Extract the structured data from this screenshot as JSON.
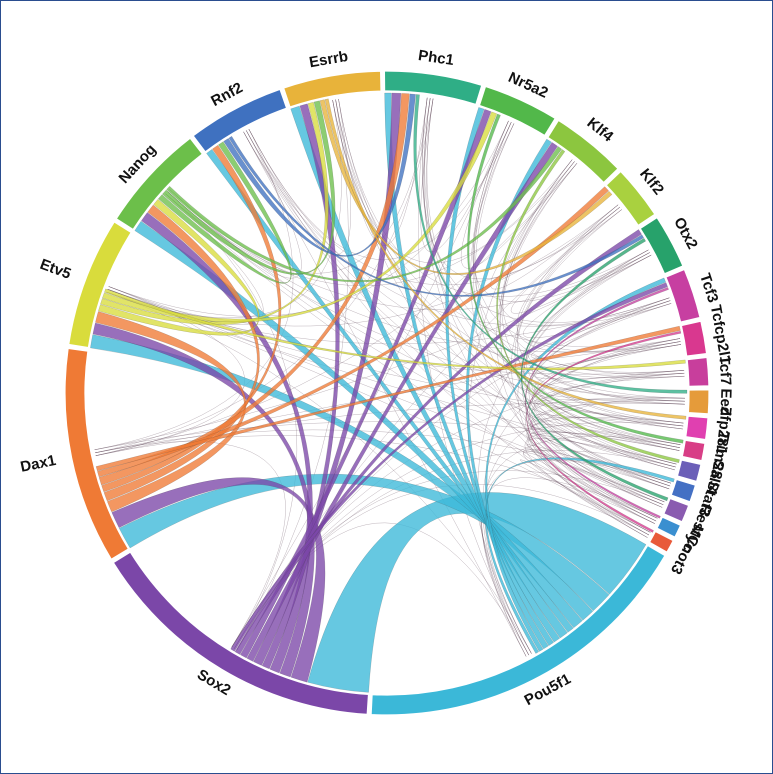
{
  "diagram": {
    "type": "chord",
    "segments": [
      {
        "id": "Pou5f1",
        "label": "Pou5f1",
        "color": "#3bb8d8",
        "weight": 16
      },
      {
        "id": "Sox2",
        "label": "Sox2",
        "color": "#7b47a8",
        "weight": 14
      },
      {
        "id": "Dax1",
        "label": "Dax1",
        "color": "#ef7a35",
        "weight": 10
      },
      {
        "id": "Etv5",
        "label": "Etv5",
        "color": "#d9dc3c",
        "weight": 6
      },
      {
        "id": "Nanog",
        "label": "Nanog",
        "color": "#6cbf4a",
        "weight": 5
      },
      {
        "id": "Rnf2",
        "label": "Rnf2",
        "color": "#3f71c0",
        "weight": 4.5
      },
      {
        "id": "Esrrb",
        "label": "Esrrb",
        "color": "#e8b33a",
        "weight": 4.5
      },
      {
        "id": "Phc1",
        "label": "Phc1",
        "color": "#2fae86",
        "weight": 4.5
      },
      {
        "id": "Nr5a2",
        "label": "Nr5a2",
        "color": "#52b84a",
        "weight": 3.5
      },
      {
        "id": "Klf4",
        "label": "Klf4",
        "color": "#8cc63f",
        "weight": 3.5
      },
      {
        "id": "Klf2",
        "label": "Klf2",
        "color": "#a9d13f",
        "weight": 2.5
      },
      {
        "id": "Otx2",
        "label": "Otx2",
        "color": "#27a26b",
        "weight": 2.5
      },
      {
        "id": "Tcf3",
        "label": "Tcf3",
        "color": "#c73fa1",
        "weight": 2.3
      },
      {
        "id": "Tcfcp2l1",
        "label": "Tcfcp2l1",
        "color": "#d9388f",
        "weight": 1.5
      },
      {
        "id": "Tcf7",
        "label": "Tcf7",
        "color": "#c83e9c",
        "weight": 1.3
      },
      {
        "id": "Eed",
        "label": "Eed",
        "color": "#e59b3a",
        "weight": 1.1
      },
      {
        "id": "Zfp281",
        "label": "Zfp281",
        "color": "#e040b0",
        "weight": 1.0
      },
      {
        "id": "Trim28",
        "label": "Trim28",
        "color": "#d83e86",
        "weight": 0.8
      },
      {
        "id": "Sall4",
        "label": "Sall4",
        "color": "#6b5fb8",
        "weight": 0.8
      },
      {
        "id": "Stat3",
        "label": "Stat3",
        "color": "#4470c4",
        "weight": 0.8
      },
      {
        "id": "Rest",
        "label": "Rest",
        "color": "#8a5bb0",
        "weight": 0.8
      },
      {
        "id": "Myc",
        "label": "Myc",
        "color": "#3a8fd0",
        "weight": 0.6
      },
      {
        "id": "Cnot3",
        "label": "Cnot3",
        "color": "#e85a3a",
        "weight": 0.6
      }
    ],
    "links": [
      [
        "Pou5f1",
        "Sox2",
        5.5
      ],
      [
        "Pou5f1",
        "Dax1",
        2.0
      ],
      [
        "Pou5f1",
        "Etv5",
        1.2
      ],
      [
        "Pou5f1",
        "Nanog",
        1.0
      ],
      [
        "Pou5f1",
        "Rnf2",
        0.6
      ],
      [
        "Pou5f1",
        "Esrrb",
        0.8
      ],
      [
        "Pou5f1",
        "Phc1",
        0.6
      ],
      [
        "Pou5f1",
        "Nr5a2",
        0.5
      ],
      [
        "Pou5f1",
        "Klf4",
        0.5
      ],
      [
        "Pou5f1",
        "Tcf3",
        0.4
      ],
      [
        "Pou5f1",
        "Stat3",
        0.3
      ],
      [
        "Sox2",
        "Dax1",
        1.5
      ],
      [
        "Sox2",
        "Etv5",
        1.0
      ],
      [
        "Sox2",
        "Nanog",
        0.9
      ],
      [
        "Sox2",
        "Esrrb",
        0.7
      ],
      [
        "Sox2",
        "Phc1",
        0.8
      ],
      [
        "Sox2",
        "Klf4",
        0.6
      ],
      [
        "Sox2",
        "Nr5a2",
        0.6
      ],
      [
        "Sox2",
        "Otx2",
        0.5
      ],
      [
        "Sox2",
        "Tcf3",
        0.4
      ],
      [
        "Dax1",
        "Etv5",
        1.0
      ],
      [
        "Dax1",
        "Nanog",
        0.8
      ],
      [
        "Dax1",
        "Rnf2",
        0.6
      ],
      [
        "Dax1",
        "Phc1",
        0.7
      ],
      [
        "Dax1",
        "Klf2",
        0.5
      ],
      [
        "Dax1",
        "Tcfcp2l1",
        0.4
      ],
      [
        "Etv5",
        "Nanog",
        0.6
      ],
      [
        "Etv5",
        "Esrrb",
        0.5
      ],
      [
        "Etv5",
        "Nr5a2",
        0.5
      ],
      [
        "Etv5",
        "Tcf7",
        0.3
      ],
      [
        "Nanog",
        "Rnf2",
        0.5
      ],
      [
        "Nanog",
        "Esrrb",
        0.5
      ],
      [
        "Nanog",
        "Klf4",
        0.4
      ],
      [
        "Rnf2",
        "Phc1",
        0.5
      ],
      [
        "Rnf2",
        "Otx2",
        0.3
      ],
      [
        "Esrrb",
        "Klf2",
        0.4
      ],
      [
        "Esrrb",
        "Zfp281",
        0.3
      ],
      [
        "Phc1",
        "Eed",
        0.3
      ],
      [
        "Nr5a2",
        "Trim28",
        0.3
      ],
      [
        "Klf4",
        "Sall4",
        0.3
      ],
      [
        "Otx2",
        "Rest",
        0.3
      ],
      [
        "Tcf3",
        "Myc",
        0.2
      ],
      [
        "Tcfcp2l1",
        "Cnot3",
        0.2
      ]
    ]
  }
}
